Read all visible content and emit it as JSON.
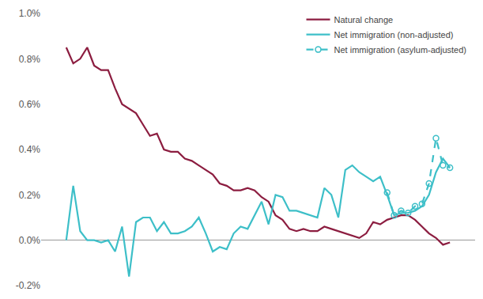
{
  "chart_data": {
    "type": "line",
    "categories": [
      null,
      null,
      null,
      null,
      null,
      null,
      null,
      null,
      null,
      null,
      null,
      null,
      null,
      null,
      null,
      null,
      null,
      null,
      null,
      null,
      null,
      null,
      null,
      null,
      null,
      null,
      null,
      null,
      null,
      null,
      null,
      null,
      null,
      null,
      null,
      null,
      null,
      null,
      null,
      null,
      null,
      null,
      null,
      null,
      null,
      null,
      null,
      null,
      null,
      null,
      null,
      null,
      null,
      null,
      null,
      null
    ],
    "series": [
      {
        "name": "Natural change",
        "color": "#8c1d40",
        "line_style": "solid",
        "values": [
          0.85,
          0.78,
          0.8,
          0.85,
          0.77,
          0.75,
          0.75,
          0.67,
          0.6,
          0.58,
          0.56,
          0.51,
          0.46,
          0.47,
          0.4,
          0.39,
          0.39,
          0.36,
          0.35,
          0.33,
          0.31,
          0.29,
          0.25,
          0.24,
          0.22,
          0.22,
          0.23,
          0.22,
          0.19,
          0.17,
          0.11,
          0.09,
          0.05,
          0.04,
          0.05,
          0.04,
          0.04,
          0.06,
          0.05,
          0.04,
          0.03,
          0.02,
          0.01,
          0.03,
          0.08,
          0.07,
          0.09,
          0.1,
          0.11,
          0.11,
          0.09,
          0.06,
          0.03,
          0.01,
          -0.02,
          -0.01
        ]
      },
      {
        "name": "Net immigration (non-adjusted)",
        "color": "#3dbfc8",
        "line_style": "solid",
        "values": [
          0.0,
          0.24,
          0.04,
          0.0,
          0.0,
          -0.01,
          0.0,
          -0.05,
          0.06,
          -0.16,
          0.08,
          0.1,
          0.1,
          0.04,
          0.08,
          0.03,
          0.03,
          0.04,
          0.06,
          0.1,
          0.03,
          -0.05,
          -0.03,
          -0.04,
          0.03,
          0.06,
          0.05,
          0.11,
          0.17,
          0.07,
          0.2,
          0.19,
          0.13,
          0.13,
          0.12,
          0.11,
          0.1,
          0.23,
          0.2,
          0.1,
          0.31,
          0.33,
          0.3,
          0.28,
          0.26,
          0.28,
          0.2,
          0.11,
          0.12,
          0.12,
          0.13,
          0.15,
          0.2,
          0.3,
          0.36,
          0.32
        ]
      },
      {
        "name": "Net immigration (asylum-adjusted)",
        "color": "#3dbfc8",
        "line_style": "dash",
        "marker": "circle",
        "values": [
          null,
          null,
          null,
          null,
          null,
          null,
          null,
          null,
          null,
          null,
          null,
          null,
          null,
          null,
          null,
          null,
          null,
          null,
          null,
          null,
          null,
          null,
          null,
          null,
          null,
          null,
          null,
          null,
          null,
          null,
          null,
          null,
          null,
          null,
          null,
          null,
          null,
          null,
          null,
          null,
          null,
          null,
          null,
          null,
          null,
          null,
          0.21,
          0.11,
          0.13,
          0.12,
          0.15,
          0.16,
          0.25,
          0.45,
          0.33,
          0.32
        ]
      }
    ],
    "ylim": [
      -0.2,
      1.0
    ],
    "yticks": [
      {
        "value": -0.2,
        "label": "-0.2%"
      },
      {
        "value": 0.0,
        "label": "0.0%"
      },
      {
        "value": 0.2,
        "label": "0.2%"
      },
      {
        "value": 0.4,
        "label": "0.4%"
      },
      {
        "value": 0.6,
        "label": "0.6%"
      },
      {
        "value": 0.8,
        "label": "0.8%"
      },
      {
        "value": 1.0,
        "label": "1.0%"
      }
    ],
    "grid": false,
    "legend": "top right",
    "tick_labels": "y"
  }
}
